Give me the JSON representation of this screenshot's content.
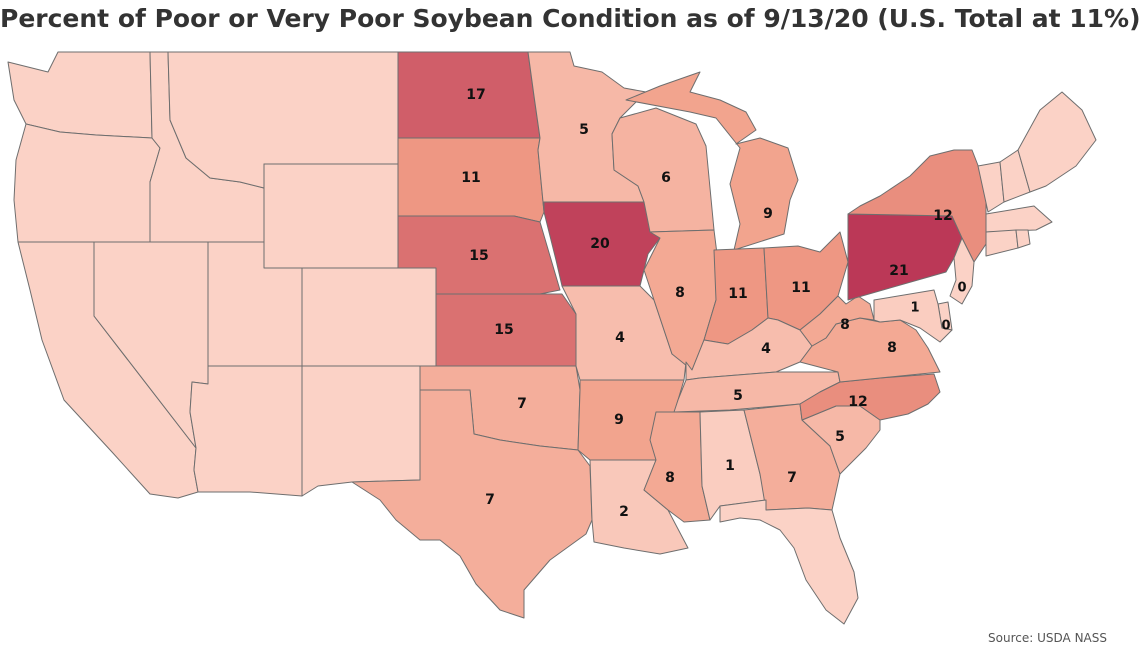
{
  "title": "Percent of Poor or Very Poor Soybean Condition as of 9/13/20 (U.S. Total at 11%)",
  "source": "Source: USDA NASS",
  "color_scale": {
    "low": "#fbd2c6",
    "mid": "#f19c85",
    "high": "#bb3857",
    "max_value": 21
  },
  "map_data": {
    "type": "choropleth",
    "region": "contiguous United States",
    "metric": "Percent poor or very poor soybean condition",
    "states": [
      {
        "code": "ND",
        "value": 17
      },
      {
        "code": "SD",
        "value": 11
      },
      {
        "code": "NE",
        "value": 15
      },
      {
        "code": "KS",
        "value": 15
      },
      {
        "code": "MN",
        "value": 5
      },
      {
        "code": "IA",
        "value": 20
      },
      {
        "code": "MO",
        "value": 4
      },
      {
        "code": "AR",
        "value": 9
      },
      {
        "code": "WI",
        "value": 6
      },
      {
        "code": "IL",
        "value": 8
      },
      {
        "code": "MI",
        "value": 9
      },
      {
        "code": "IN",
        "value": 11
      },
      {
        "code": "OH",
        "value": 11
      },
      {
        "code": "KY",
        "value": 4
      },
      {
        "code": "TN",
        "value": 5
      },
      {
        "code": "MS",
        "value": 8
      },
      {
        "code": "LA",
        "value": 2
      },
      {
        "code": "AL",
        "value": 1
      },
      {
        "code": "GA",
        "value": 7
      },
      {
        "code": "SC",
        "value": 5
      },
      {
        "code": "NC",
        "value": 12
      },
      {
        "code": "VA",
        "value": 8
      },
      {
        "code": "WV",
        "value": 8
      },
      {
        "code": "PA",
        "value": 21
      },
      {
        "code": "NY",
        "value": 12
      },
      {
        "code": "NJ",
        "value": 0
      },
      {
        "code": "DE",
        "value": 0
      },
      {
        "code": "MD",
        "value": 1
      },
      {
        "code": "OK",
        "value": 7
      },
      {
        "code": "TX",
        "value": 7
      }
    ],
    "no_data_states": [
      "WA",
      "OR",
      "CA",
      "NV",
      "ID",
      "MT",
      "WY",
      "UT",
      "CO",
      "AZ",
      "NM",
      "FL",
      "ME",
      "NH",
      "VT",
      "MA",
      "CT",
      "RI"
    ]
  }
}
